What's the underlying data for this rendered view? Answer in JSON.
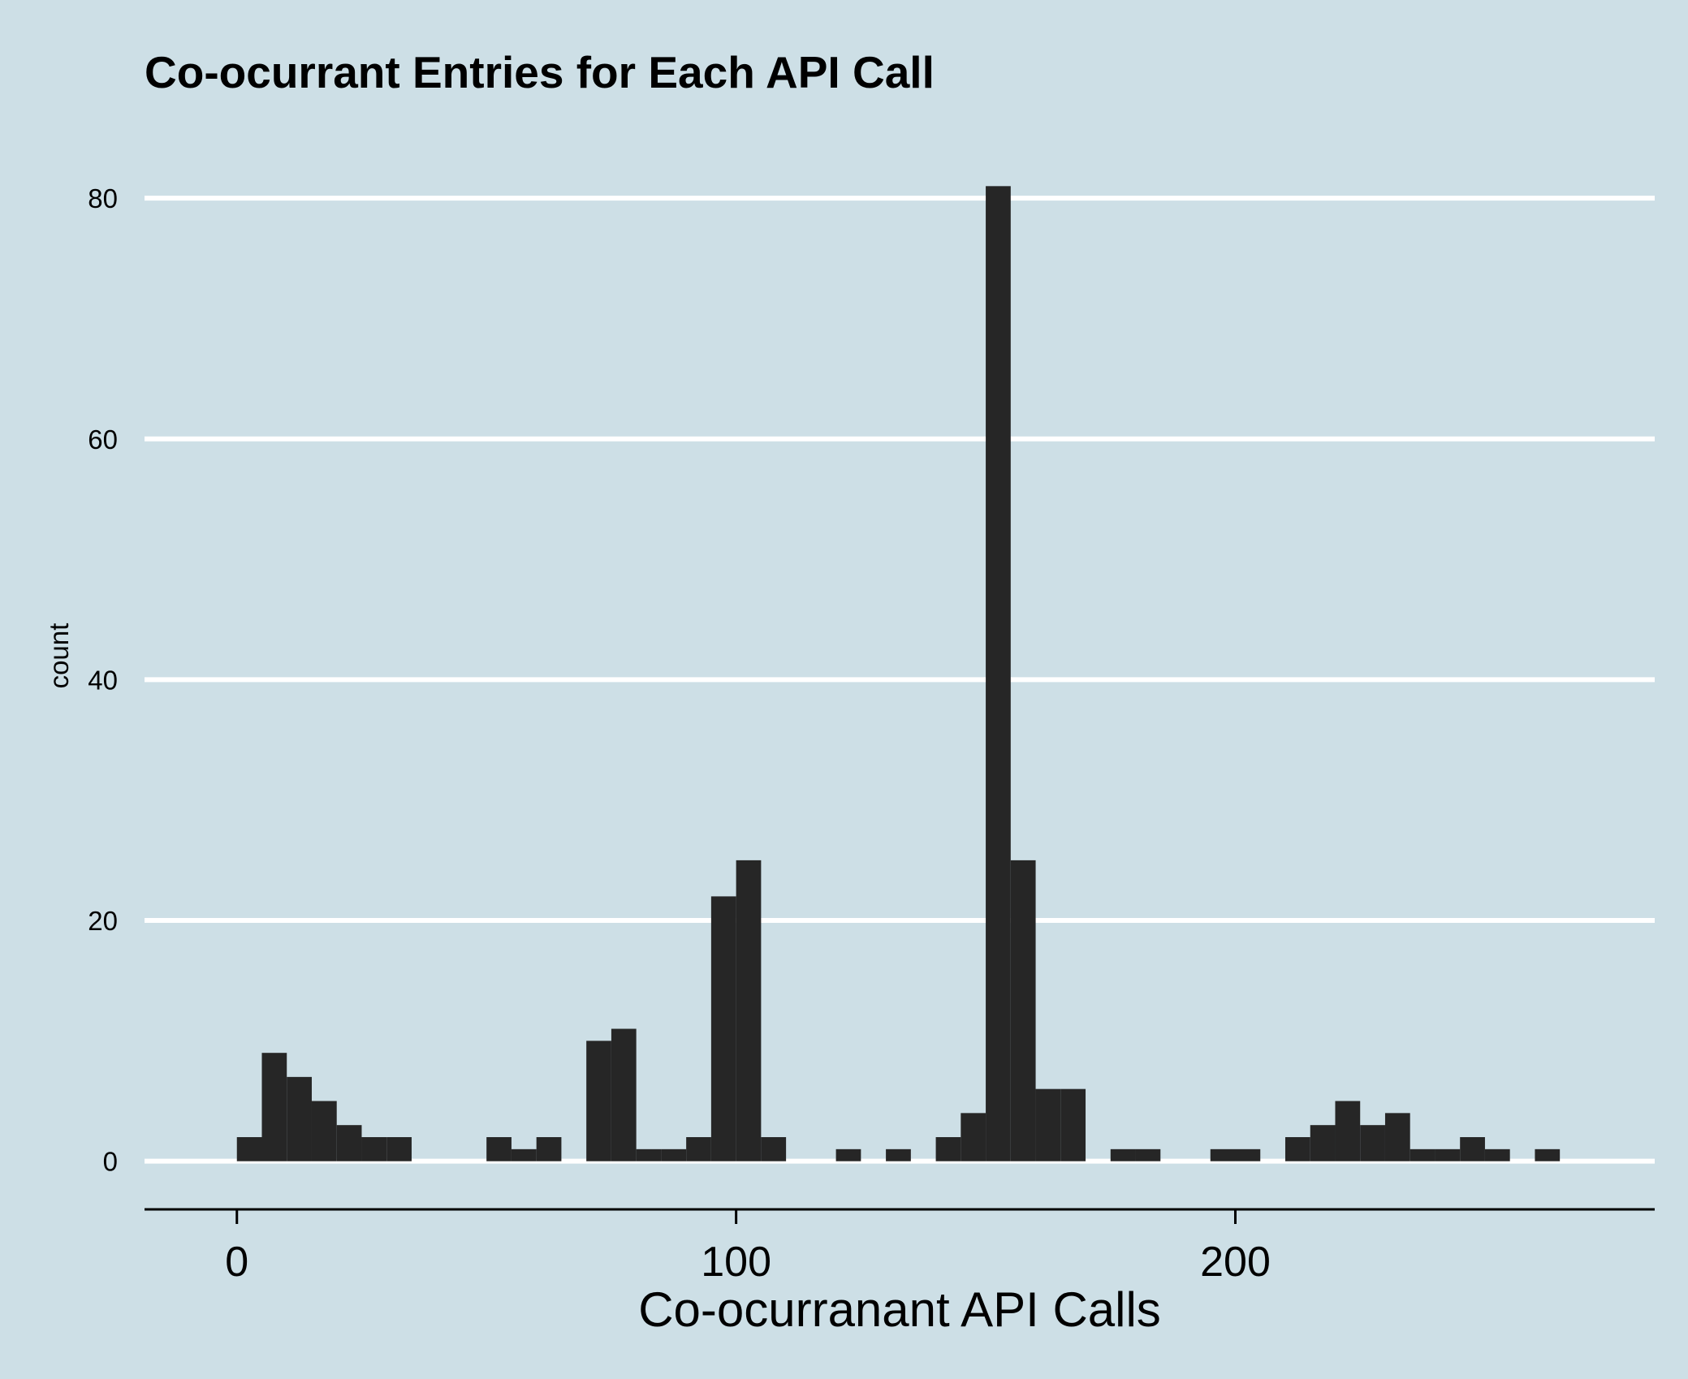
{
  "chart_data": {
    "type": "bar",
    "title": "Co-ocurrant Entries for Each API Call",
    "xlabel": "Co-ocurranant API Calls",
    "ylabel": "count",
    "xlim": [
      -18.5,
      284
    ],
    "ylim": [
      -4,
      85
    ],
    "x_ticks": [
      0,
      100,
      200
    ],
    "y_ticks": [
      0,
      20,
      40,
      60,
      80
    ],
    "grid": "horizontal",
    "colors": {
      "background": "#cddfe6",
      "bar": "#262626",
      "grid": "#ffffff",
      "axis": "#000000"
    },
    "bin_width": 5,
    "bins": [
      {
        "x0": 0,
        "x1": 5,
        "count": 2
      },
      {
        "x0": 5,
        "x1": 10,
        "count": 9
      },
      {
        "x0": 10,
        "x1": 15,
        "count": 7
      },
      {
        "x0": 15,
        "x1": 20,
        "count": 5
      },
      {
        "x0": 20,
        "x1": 25,
        "count": 3
      },
      {
        "x0": 25,
        "x1": 30,
        "count": 2
      },
      {
        "x0": 30,
        "x1": 35,
        "count": 2
      },
      {
        "x0": 50,
        "x1": 55,
        "count": 2
      },
      {
        "x0": 55,
        "x1": 60,
        "count": 1
      },
      {
        "x0": 60,
        "x1": 65,
        "count": 2
      },
      {
        "x0": 70,
        "x1": 75,
        "count": 10
      },
      {
        "x0": 75,
        "x1": 80,
        "count": 11
      },
      {
        "x0": 80,
        "x1": 85,
        "count": 1
      },
      {
        "x0": 85,
        "x1": 90,
        "count": 1
      },
      {
        "x0": 90,
        "x1": 95,
        "count": 2
      },
      {
        "x0": 95,
        "x1": 100,
        "count": 22
      },
      {
        "x0": 100,
        "x1": 105,
        "count": 25
      },
      {
        "x0": 105,
        "x1": 110,
        "count": 2
      },
      {
        "x0": 120,
        "x1": 125,
        "count": 1
      },
      {
        "x0": 130,
        "x1": 135,
        "count": 1
      },
      {
        "x0": 140,
        "x1": 145,
        "count": 2
      },
      {
        "x0": 145,
        "x1": 150,
        "count": 4
      },
      {
        "x0": 150,
        "x1": 155,
        "count": 81
      },
      {
        "x0": 155,
        "x1": 160,
        "count": 25
      },
      {
        "x0": 160,
        "x1": 165,
        "count": 6
      },
      {
        "x0": 165,
        "x1": 170,
        "count": 6
      },
      {
        "x0": 175,
        "x1": 180,
        "count": 1
      },
      {
        "x0": 180,
        "x1": 185,
        "count": 1
      },
      {
        "x0": 195,
        "x1": 200,
        "count": 1
      },
      {
        "x0": 200,
        "x1": 205,
        "count": 1
      },
      {
        "x0": 210,
        "x1": 215,
        "count": 2
      },
      {
        "x0": 215,
        "x1": 220,
        "count": 3
      },
      {
        "x0": 220,
        "x1": 225,
        "count": 5
      },
      {
        "x0": 225,
        "x1": 230,
        "count": 3
      },
      {
        "x0": 230,
        "x1": 235,
        "count": 4
      },
      {
        "x0": 235,
        "x1": 240,
        "count": 1
      },
      {
        "x0": 240,
        "x1": 245,
        "count": 1
      },
      {
        "x0": 245,
        "x1": 250,
        "count": 2
      },
      {
        "x0": 250,
        "x1": 255,
        "count": 1
      },
      {
        "x0": 260,
        "x1": 265,
        "count": 1
      }
    ]
  }
}
